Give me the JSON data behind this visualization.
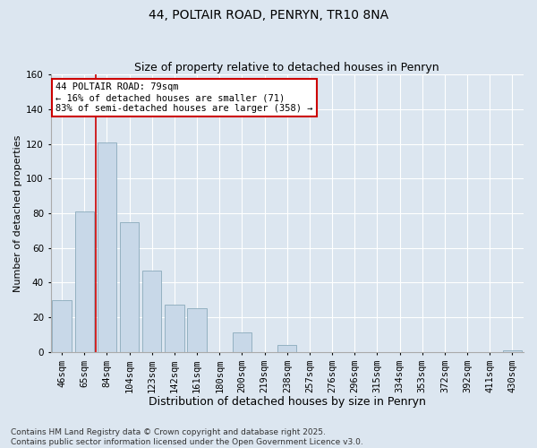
{
  "title": "44, POLTAIR ROAD, PENRYN, TR10 8NA",
  "subtitle": "Size of property relative to detached houses in Penryn",
  "xlabel": "Distribution of detached houses by size in Penryn",
  "ylabel": "Number of detached properties",
  "categories": [
    "46sqm",
    "65sqm",
    "84sqm",
    "104sqm",
    "123sqm",
    "142sqm",
    "161sqm",
    "180sqm",
    "200sqm",
    "219sqm",
    "238sqm",
    "257sqm",
    "276sqm",
    "296sqm",
    "315sqm",
    "334sqm",
    "353sqm",
    "372sqm",
    "392sqm",
    "411sqm",
    "430sqm"
  ],
  "values": [
    30,
    81,
    121,
    75,
    47,
    27,
    25,
    0,
    11,
    0,
    4,
    0,
    0,
    0,
    0,
    0,
    0,
    0,
    0,
    0,
    1
  ],
  "bar_color": "#c8d8e8",
  "bar_edge_color": "#8aaabb",
  "vline_x_idx": 1.5,
  "vline_color": "#cc0000",
  "annotation_text": "44 POLTAIR ROAD: 79sqm\n← 16% of detached houses are smaller (71)\n83% of semi-detached houses are larger (358) →",
  "annotation_box_facecolor": "#ffffff",
  "annotation_box_edgecolor": "#cc0000",
  "ylim": [
    0,
    160
  ],
  "yticks": [
    0,
    20,
    40,
    60,
    80,
    100,
    120,
    140,
    160
  ],
  "bg_color": "#dce6f0",
  "plot_bg_color": "#dce6f0",
  "footer_text": "Contains HM Land Registry data © Crown copyright and database right 2025.\nContains public sector information licensed under the Open Government Licence v3.0.",
  "title_fontsize": 10,
  "xlabel_fontsize": 9,
  "ylabel_fontsize": 8,
  "tick_fontsize": 7.5,
  "footer_fontsize": 6.5,
  "annot_fontsize": 7.5
}
